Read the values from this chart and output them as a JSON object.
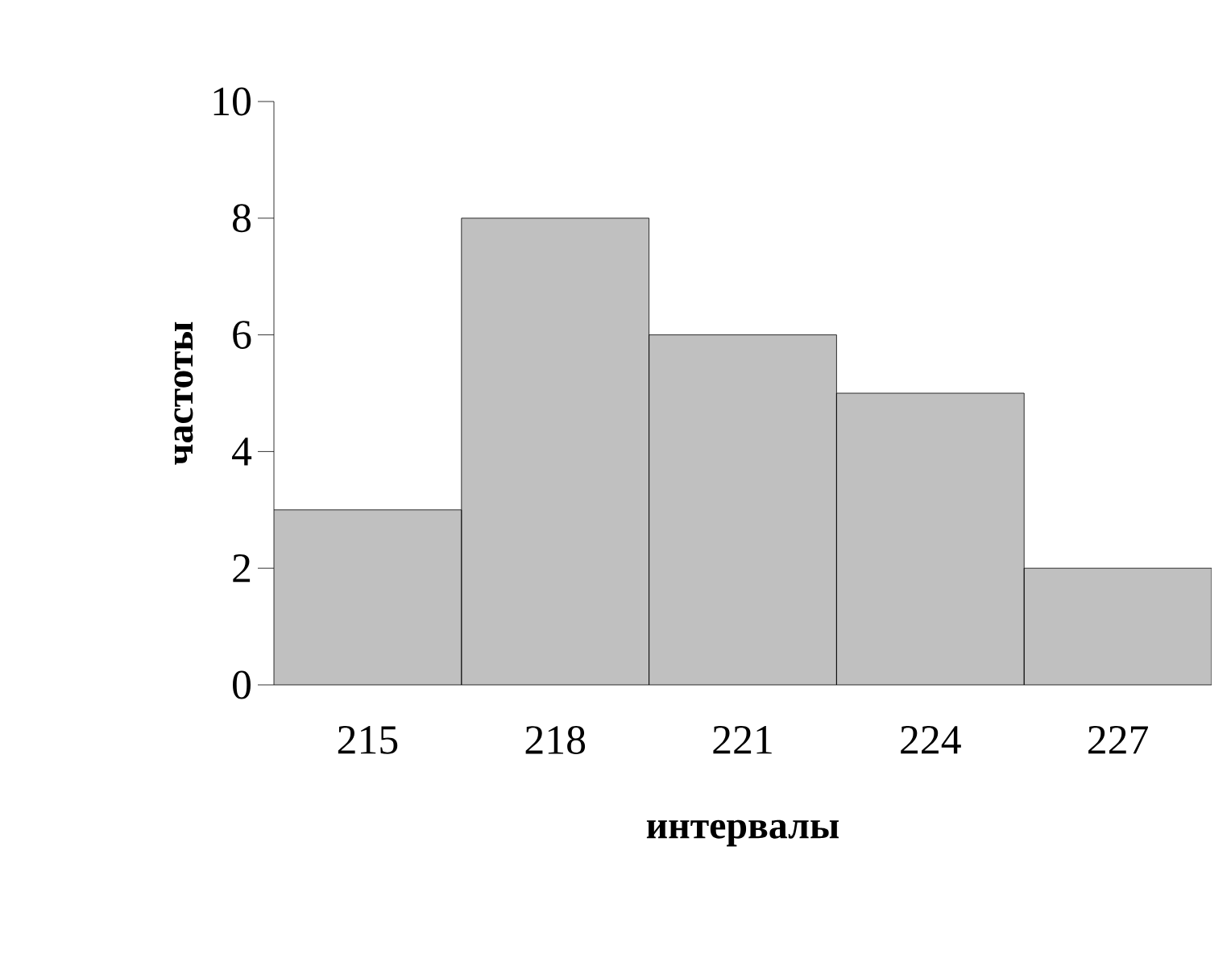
{
  "chart_data": {
    "type": "bar",
    "xlabel": "интервалы",
    "ylabel": "частоты",
    "categories": [
      "215",
      "218",
      "221",
      "224",
      "227"
    ],
    "values": [
      3,
      8,
      6,
      5,
      2
    ],
    "color": "#c0c0c0",
    "ylim": [
      0,
      10
    ],
    "yticks": [
      0,
      2,
      4,
      6,
      8,
      10
    ]
  }
}
